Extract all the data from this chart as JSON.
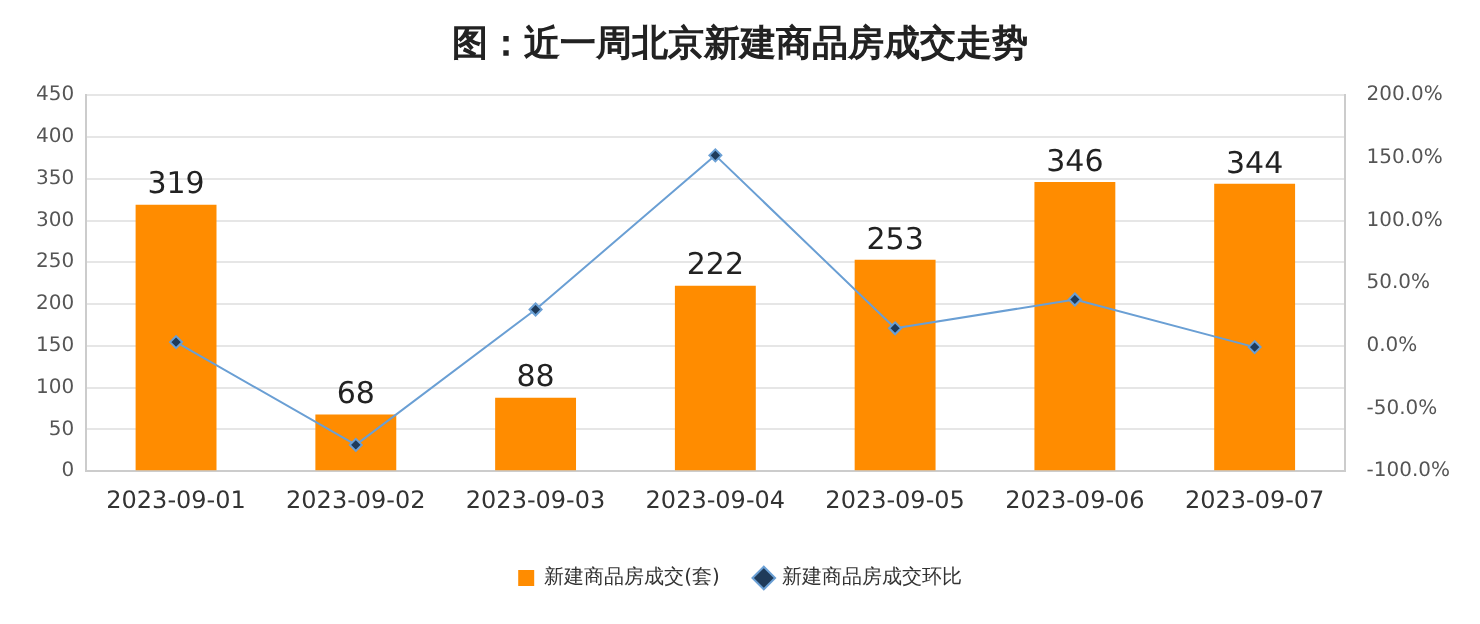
{
  "chart_data": {
    "type": "bar",
    "title": "图：近一周北京新建商品房成交走势",
    "categories": [
      "2023-09-01",
      "2023-09-02",
      "2023-09-03",
      "2023-09-04",
      "2023-09-05",
      "2023-09-06",
      "2023-09-07"
    ],
    "series": [
      {
        "name": "新建商品房成交(套)",
        "color": "#ff8c00",
        "values": [
          319,
          68,
          88,
          222,
          253,
          346,
          344
        ],
        "value_labels": [
          "319",
          "68",
          "88",
          "222",
          "253",
          "346",
          "344"
        ]
      },
      {
        "name": "新建商品房成交环比",
        "type": "line",
        "axis": "y2",
        "color": "#6a9fd4",
        "marker": "diamond",
        "values": [
          3,
          -79,
          29,
          152,
          14,
          37,
          -1
        ]
      }
    ],
    "ylim": [
      0,
      450
    ],
    "yticks": [
      0,
      50,
      100,
      150,
      200,
      250,
      300,
      350,
      400,
      450
    ],
    "y2lim": [
      -100,
      200
    ],
    "y2ticks": [
      {
        "value": -100,
        "label": "-100.0%"
      },
      {
        "value": -50,
        "label": "-50.0%"
      },
      {
        "value": 0,
        "label": "0.0%"
      },
      {
        "value": 50,
        "label": "50.0%"
      },
      {
        "value": 100,
        "label": "100.0%"
      },
      {
        "value": 150,
        "label": "150.0%"
      },
      {
        "value": 200,
        "label": "200.0%"
      }
    ],
    "grid": "y",
    "legend": "bottom"
  }
}
